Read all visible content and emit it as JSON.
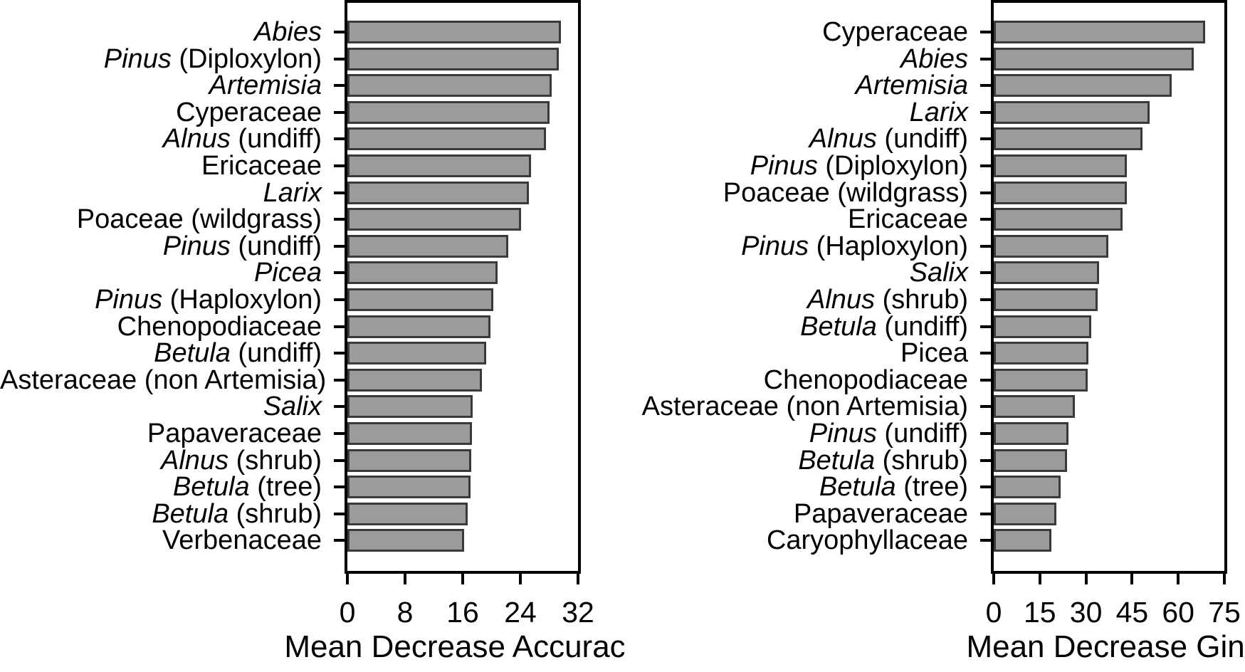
{
  "figure": {
    "background_color": "#ffffff",
    "text_color": "#000000",
    "bar_fill_color": "#9b9b9b",
    "bar_border_color": "#3a3a3a",
    "axis_color": "#000000"
  },
  "chart_data": [
    {
      "type": "bar",
      "orientation": "horizontal",
      "title": "",
      "xlabel": "Mean Decrease Accuracy",
      "ylabel": "",
      "xlim": [
        0,
        32
      ],
      "xticks": [
        0,
        8,
        16,
        24,
        32
      ],
      "grid": false,
      "legend": false,
      "italic_marker_note": "segments wrapped in * are italic taxon names",
      "categories": [
        "*Abies*",
        "*Pinus* (Diploxylon)",
        "*Artemisia*",
        "Cyperaceae",
        "*Alnus* (undiff)",
        "Ericaceae",
        "*Larix*",
        "Poaceae (wildgrass)",
        "*Pinus* (undiff)",
        "*Picea*",
        "*Pinus* (Haploxylon)",
        "Chenopodiaceae",
        "*Betula* (undiff)",
        "Asteraceae (non Artemisia)",
        "*Salix*",
        "Papaveraceae",
        "*Alnus* (shrub)",
        "*Betula* (tree)",
        "*Betula* (shrub)",
        "Verbenaceae"
      ],
      "values": [
        29.6,
        29.3,
        28.3,
        28.0,
        27.6,
        25.5,
        25.2,
        24.1,
        22.3,
        20.8,
        20.2,
        19.9,
        19.3,
        18.7,
        17.4,
        17.3,
        17.2,
        17.1,
        16.7,
        16.2
      ]
    },
    {
      "type": "bar",
      "orientation": "horizontal",
      "title": "",
      "xlabel": "Mean Decrease Gini",
      "ylabel": "",
      "xlim": [
        0,
        75
      ],
      "xticks": [
        0,
        15,
        30,
        45,
        60,
        75
      ],
      "grid": false,
      "legend": false,
      "italic_marker_note": "segments wrapped in * are italic taxon names",
      "categories": [
        "Cyperaceae",
        "*Abies*",
        "*Artemisia*",
        "*Larix*",
        "*Alnus* (undiff)",
        "*Pinus* (Diploxylon)",
        "Poaceae (wildgrass)",
        "Ericaceae",
        "*Pinus* (Haploxylon)",
        "*Salix*",
        "*Alnus* (shrub)",
        "*Betula* (undiff)",
        "Picea",
        "Chenopodiaceae",
        "Asteraceae (non Artemisia)",
        "*Pinus* (undiff)",
        "*Betula* (shrub)",
        "*Betula* (tree)",
        "Papaveraceae",
        "Caryophyllaceae"
      ],
      "values": [
        68.8,
        65.0,
        57.9,
        50.8,
        48.4,
        43.4,
        43.3,
        42.0,
        37.3,
        34.2,
        33.7,
        31.8,
        30.9,
        30.6,
        26.4,
        24.2,
        23.9,
        21.8,
        20.3,
        18.7
      ]
    }
  ]
}
